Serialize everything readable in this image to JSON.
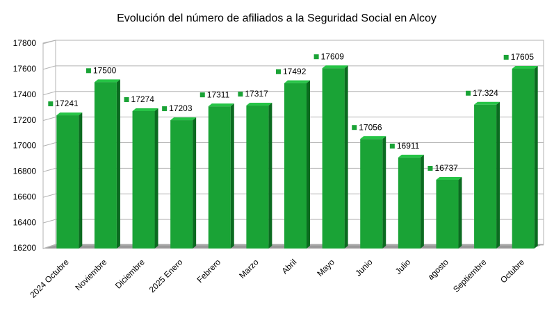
{
  "chart_data": {
    "type": "bar",
    "title": "Evolución del número de afiliados a la Seguridad Social en Alcoy",
    "categories": [
      "2024 Octubre",
      "Noviembre",
      "Diciembre",
      "2025 Enero",
      "Febrero",
      "Marzo",
      "Abril",
      "Mayo",
      "Junio",
      "Julio",
      "agosto",
      "Septiembre",
      "Octubre"
    ],
    "values": [
      17241,
      17500,
      17274,
      17203,
      17311,
      17317,
      17492,
      17609,
      17056,
      16911,
      16737,
      17324,
      17605
    ],
    "value_labels": [
      "17241",
      "17500",
      "17274",
      "17203",
      "17311",
      "17317",
      "17492",
      "17609",
      "17056",
      "16911",
      "16737",
      "17.324",
      "17605"
    ],
    "color": "#1aa336",
    "ylim": [
      16200,
      17800
    ],
    "yticks": [
      16200,
      16400,
      16600,
      16800,
      17000,
      17200,
      17400,
      17600,
      17800
    ],
    "grid": true
  }
}
